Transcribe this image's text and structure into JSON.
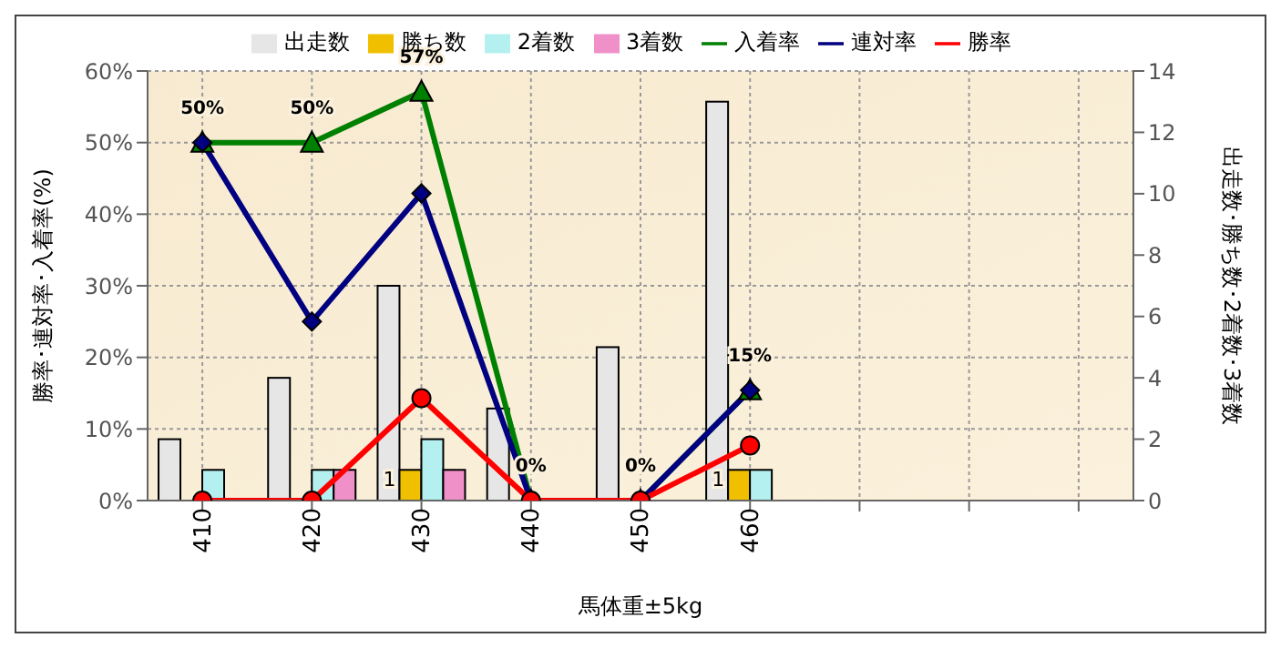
{
  "chart_data": {
    "type": "bar",
    "xlabel": "馬体重±5kg",
    "ylabel": "勝率･連対率･入着率(%)",
    "y2label": "出走数･勝ち数･2着数･3着数",
    "categories": [
      "410",
      "420",
      "430",
      "440",
      "450",
      "460",
      null,
      null,
      null
    ],
    "series": [
      {
        "name": "出走数",
        "color": "#e6e6e6",
        "axis": "y2",
        "values": [
          2,
          4,
          7,
          3,
          5,
          13,
          null,
          null,
          null
        ]
      },
      {
        "name": "勝ち数",
        "color": "#f0c000",
        "axis": "y2",
        "values": [
          0,
          0,
          1,
          0,
          0,
          1,
          null,
          null,
          null
        ],
        "value_labels": [
          null,
          null,
          "1",
          null,
          null,
          "1",
          null,
          null,
          null
        ]
      },
      {
        "name": "2着数",
        "color": "#b4f0f0",
        "axis": "y2",
        "values": [
          1,
          1,
          2,
          0,
          0,
          1,
          null,
          null,
          null
        ]
      },
      {
        "name": "3着数",
        "color": "#f090c8",
        "axis": "y2",
        "values": [
          0,
          1,
          1,
          0,
          0,
          0,
          null,
          null,
          null
        ]
      },
      {
        "name": "入着率",
        "type": "line",
        "color": "#008000",
        "marker": "triangle",
        "values": [
          50,
          50,
          57.1,
          0,
          0,
          15.4,
          null,
          null,
          null
        ],
        "value_labels": [
          "50%",
          "50%",
          "57%",
          "0%",
          "0%",
          "15%",
          null,
          null,
          null
        ]
      },
      {
        "name": "連対率",
        "type": "line",
        "color": "#000080",
        "marker": "diamond",
        "values": [
          50,
          25,
          42.9,
          0,
          0,
          15.4,
          null,
          null,
          null
        ]
      },
      {
        "name": "勝率",
        "type": "line",
        "color": "#ff0000",
        "marker": "circle",
        "values": [
          0,
          0,
          14.3,
          0,
          0,
          7.7,
          null,
          null,
          null
        ]
      }
    ],
    "ylim": [
      0,
      60
    ],
    "yticks": [
      {
        "value": 0,
        "label": "0%"
      },
      {
        "value": 10,
        "label": "10%"
      },
      {
        "value": 20,
        "label": "20%"
      },
      {
        "value": 30,
        "label": "30%"
      },
      {
        "value": 40,
        "label": "40%"
      },
      {
        "value": 50,
        "label": "50%"
      },
      {
        "value": 60,
        "label": "60%"
      }
    ],
    "y2lim": [
      0,
      14
    ],
    "y2ticks": [
      0,
      2,
      4,
      6,
      8,
      10,
      12,
      14
    ],
    "grid": true,
    "legend": "top"
  }
}
